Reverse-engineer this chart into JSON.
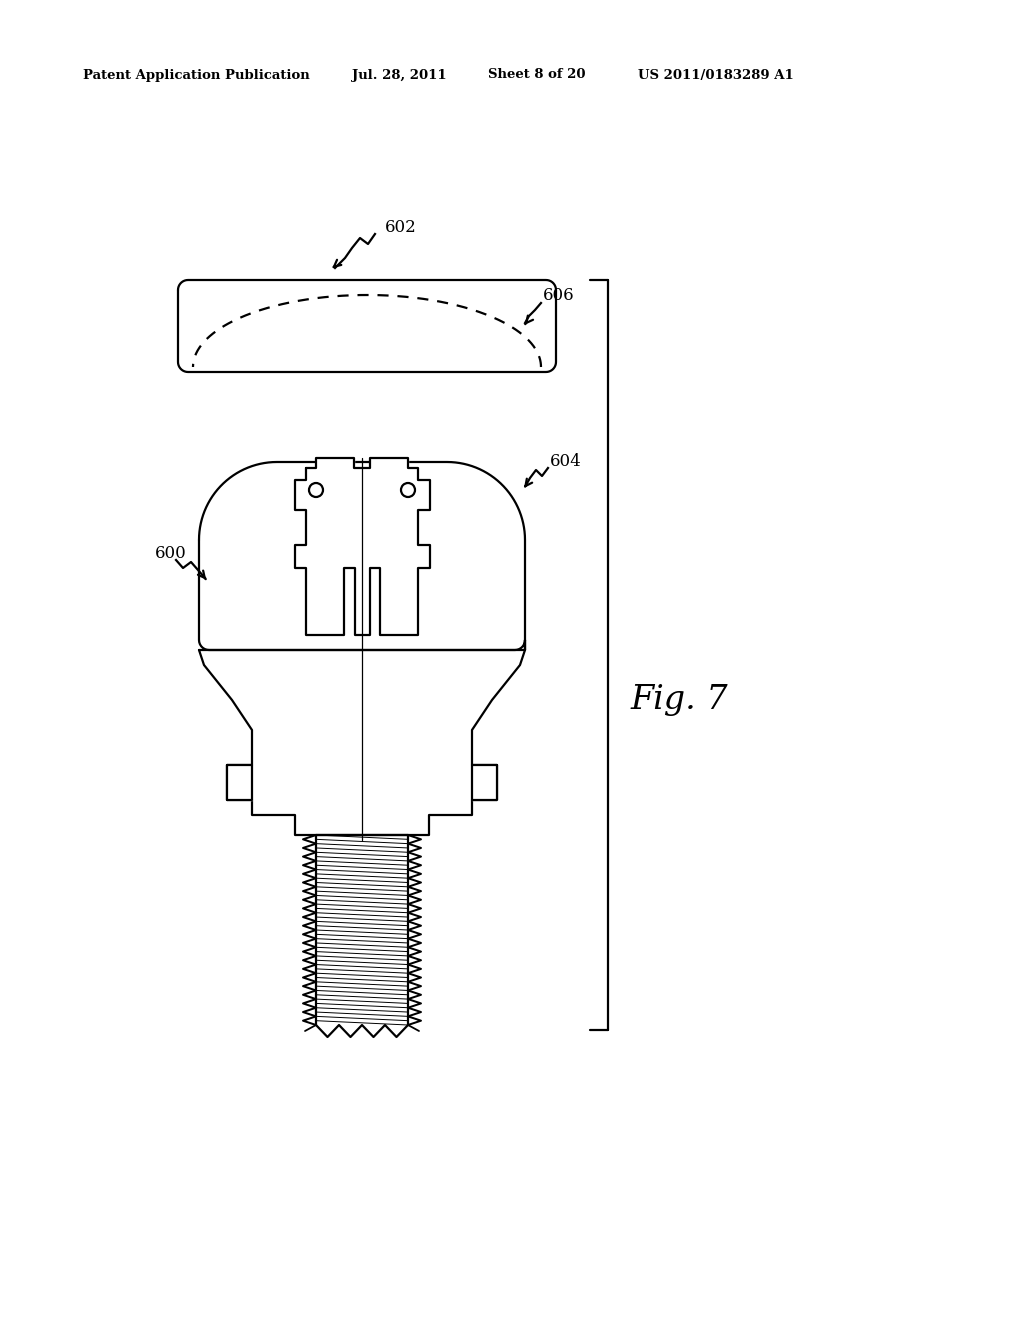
{
  "bg_color": "#ffffff",
  "line_color": "#000000",
  "header_left": "Patent Application Publication",
  "header_date": "Jul. 28, 2011",
  "header_sheet": "Sheet 8 of 20",
  "header_patent": "US 2011/0183289 A1",
  "fig_label": "Fig. 7",
  "label_600": "600",
  "label_602": "602",
  "label_604": "604",
  "label_606": "606"
}
